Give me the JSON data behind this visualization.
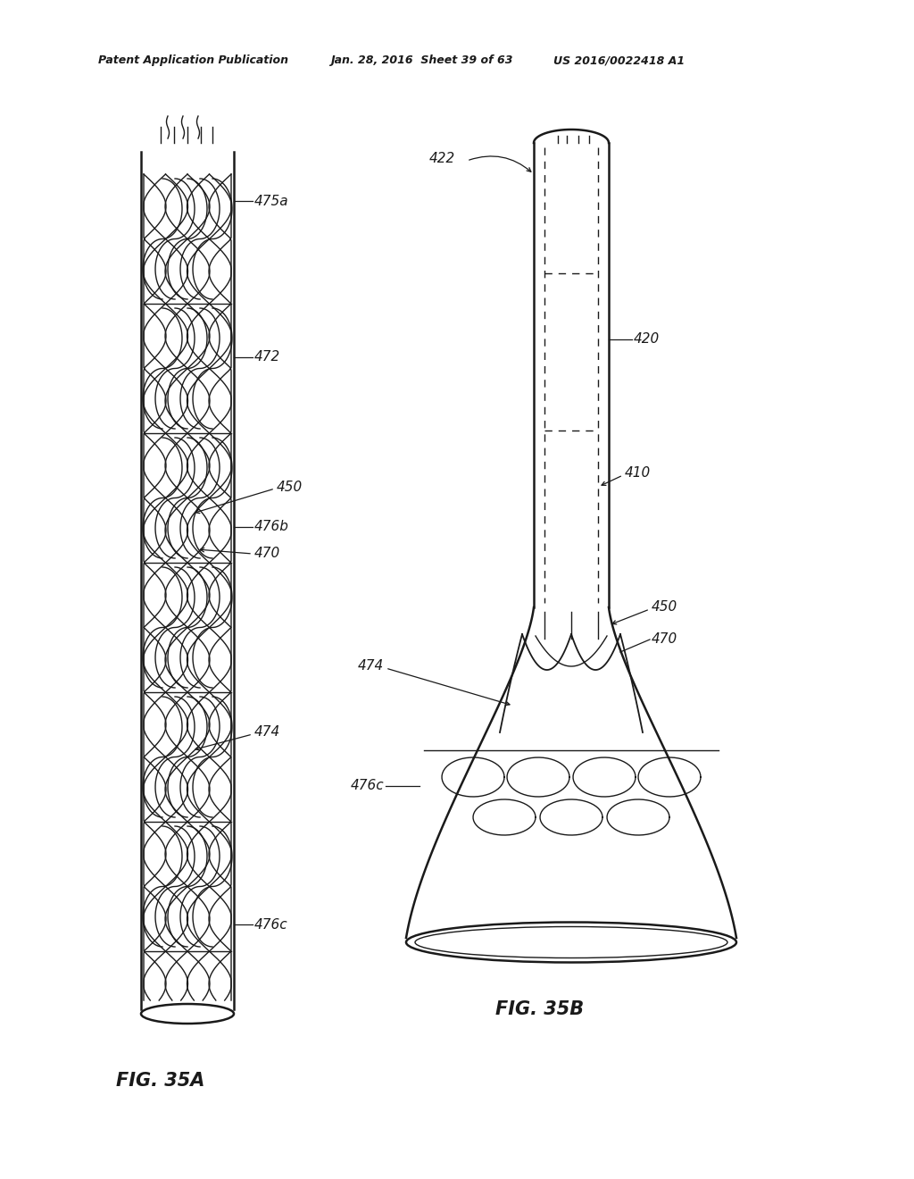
{
  "bg_color": "#ffffff",
  "line_color": "#1a1a1a",
  "header_text": "Patent Application Publication",
  "header_date": "Jan. 28, 2016  Sheet 39 of 63",
  "header_patent": "US 2016/0022418 A1",
  "fig_a_label": "FIG. 35A",
  "fig_b_label": "FIG. 35B"
}
